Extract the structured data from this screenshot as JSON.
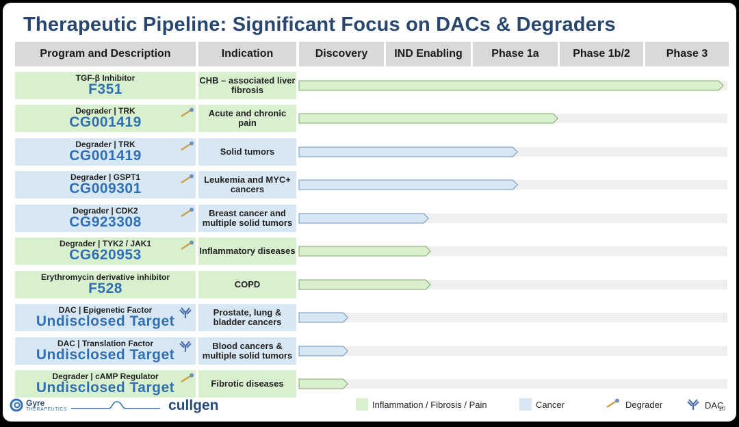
{
  "title": "Therapeutic Pipeline: Significant Focus on DACs & Degraders",
  "headers": {
    "program": "Program and Description",
    "indication": "Indication",
    "discovery": "Discovery",
    "ind_enabling": "IND Enabling",
    "phase1a": "Phase 1a",
    "phase1b2": "Phase 1b/2",
    "phase3": "Phase 3"
  },
  "colors": {
    "green": "#d9f0cf",
    "blue": "#d8e7f4",
    "title": "#28466e",
    "code": "#2f6fb2"
  },
  "rows": [
    {
      "desc": "TGF-β Inhibitor",
      "code": "F351",
      "indication": "CHB – associated liver fibrosis",
      "area": "green",
      "icon": "",
      "progress": 1.0
    },
    {
      "desc": "Degrader |  TRK",
      "code": "CG001419",
      "indication": "Acute and chronic pain",
      "area": "green",
      "icon": "degrader-icon",
      "progress": 0.61
    },
    {
      "desc": "Degrader |  TRK",
      "code": "CG001419",
      "indication": "Solid tumors",
      "area": "blue",
      "icon": "degrader-icon",
      "progress": 0.515
    },
    {
      "desc": "Degrader |  GSPT1",
      "code": "CG009301",
      "indication": "Leukemia and MYC+ cancers",
      "area": "blue",
      "icon": "degrader-icon",
      "progress": 0.515
    },
    {
      "desc": "Degrader |  CDK2",
      "code": "CG923308",
      "indication": "Breast cancer and multiple solid tumors",
      "area": "blue",
      "icon": "degrader-icon",
      "progress": 0.305
    },
    {
      "desc": "Degrader |  TYK2 / JAK1",
      "code": "CG620953",
      "indication": "Inflammatory diseases",
      "area": "green",
      "icon": "degrader-icon",
      "progress": 0.31
    },
    {
      "desc": "Erythromycin derivative inhibitor",
      "code": "F528",
      "indication": "COPD",
      "area": "green",
      "icon": "",
      "progress": 0.31
    },
    {
      "desc": "DAC |  Epigenetic Factor",
      "code": "Undisclosed Target",
      "indication": "Prostate, lung & bladder cancers",
      "area": "blue",
      "icon": "dac-icon",
      "progress": 0.115
    },
    {
      "desc": "DAC |  Translation Factor",
      "code": "Undisclosed Target",
      "indication": "Blood cancers & multiple solid tumors",
      "area": "blue",
      "icon": "dac-icon",
      "progress": 0.115
    },
    {
      "desc": "Degrader |  cAMP Regulator",
      "code": "Undisclosed Target",
      "indication": "Fibrotic diseases",
      "area": "green",
      "icon": "degrader-icon",
      "progress": 0.115
    }
  ],
  "legend": {
    "inflammation": "Inflammation / Fibrosis / Pain",
    "cancer": "Cancer",
    "degrader": "Degrader",
    "dac": "DAC"
  },
  "logos": {
    "gyre_name": "Gyre",
    "gyre_sub": "THERAPEUTICS",
    "cullgen": "cullgen"
  },
  "page_number": "10"
}
